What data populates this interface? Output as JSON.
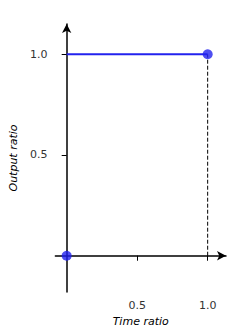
{
  "chart_data": {
    "type": "line",
    "xlabel": "Time ratio",
    "ylabel": "Output ratio",
    "xlim": [
      -0.08,
      1.13
    ],
    "ylim": [
      -0.18,
      1.15
    ],
    "xticks": [
      0.5,
      {
        "value": 1.0,
        "label": "1.0"
      }
    ],
    "yticks": [
      0.5,
      {
        "value": 1.0,
        "label": "1.0"
      }
    ],
    "grid": false,
    "series": [
      {
        "type": "line",
        "x": [
          0,
          1
        ],
        "values": [
          1,
          1
        ],
        "color": "#2222ee",
        "line_style": "solid"
      },
      {
        "type": "line",
        "x": [
          1,
          1
        ],
        "values": [
          0,
          1
        ],
        "color": "black",
        "line_style": "dashed"
      },
      {
        "type": "scatter",
        "x": [
          0,
          1
        ],
        "values": [
          0,
          1
        ],
        "color": "#2222ee"
      }
    ]
  }
}
